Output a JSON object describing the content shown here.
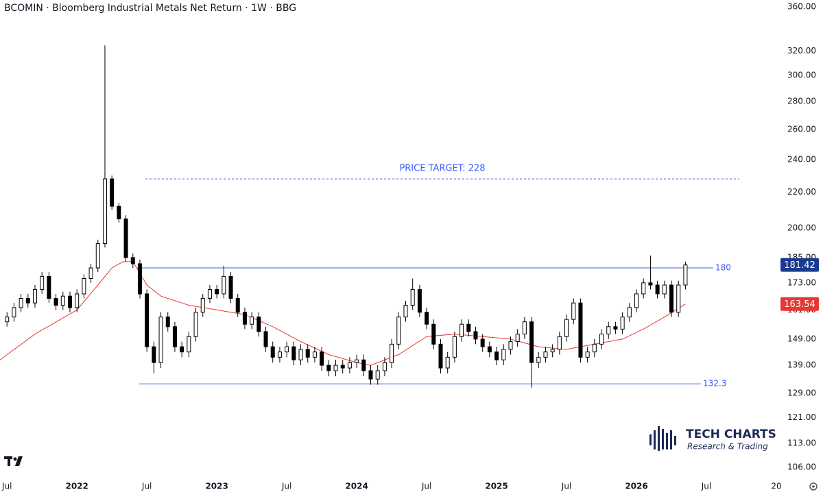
{
  "chart_data": {
    "type": "candlestick",
    "title": "BCOMIN · Bloomberg Industrial Metals Net Return · 1W · BBG",
    "x": [
      2021.5,
      2021.55,
      2021.6,
      2021.65,
      2021.7,
      2021.75,
      2021.8,
      2021.85,
      2021.9,
      2021.95,
      2022.0,
      2022.05,
      2022.1,
      2022.15,
      2022.2,
      2022.25,
      2022.3,
      2022.35,
      2022.4,
      2022.45,
      2022.5,
      2022.55,
      2022.6,
      2022.65,
      2022.7,
      2022.75,
      2022.8,
      2022.85,
      2022.9,
      2022.95,
      2023.0,
      2023.05,
      2023.1,
      2023.15,
      2023.2,
      2023.25,
      2023.3,
      2023.35,
      2023.4,
      2023.45,
      2023.5,
      2023.55,
      2023.6,
      2023.65,
      2023.7,
      2023.75,
      2023.8,
      2023.85,
      2023.9,
      2023.95,
      2024.0,
      2024.05,
      2024.1,
      2024.15,
      2024.2,
      2024.25,
      2024.3,
      2024.35,
      2024.4,
      2024.45,
      2024.5,
      2024.55,
      2024.6,
      2024.65,
      2024.7,
      2024.75,
      2024.8,
      2024.85,
      2024.9,
      2024.95,
      2025.0,
      2025.05,
      2025.1,
      2025.15,
      2025.2,
      2025.25,
      2025.3,
      2025.35,
      2025.4,
      2025.45,
      2025.5,
      2025.55,
      2025.6,
      2025.65,
      2025.7,
      2025.75,
      2025.8,
      2025.85,
      2025.9,
      2025.95,
      2026.0,
      2026.05,
      2026.1,
      2026.15,
      2026.2,
      2026.25,
      2026.3,
      2026.35
    ],
    "open": [
      156,
      158,
      162,
      166,
      164,
      170,
      176,
      166,
      163,
      167,
      162,
      168,
      175,
      180,
      192,
      228,
      212,
      205,
      185,
      182,
      168,
      146,
      140,
      158,
      154,
      146,
      144,
      150,
      160,
      166,
      170,
      168,
      176,
      166,
      160,
      155,
      158,
      152,
      146,
      142,
      144,
      146,
      141,
      145,
      142,
      144,
      139,
      137,
      139,
      138,
      140,
      141,
      137,
      134,
      137,
      140,
      147,
      158,
      163,
      170,
      160,
      155,
      147,
      138,
      142,
      150,
      155,
      152,
      149,
      146,
      144,
      141,
      145,
      148,
      151,
      156,
      140,
      142,
      144,
      145,
      150,
      157,
      164,
      142,
      144,
      147,
      151,
      154,
      153,
      158,
      162,
      168,
      173,
      172,
      168,
      172,
      160,
      172
    ],
    "high": [
      160,
      164,
      168,
      168,
      172,
      178,
      178,
      168,
      169,
      169,
      170,
      177,
      182,
      194,
      325,
      230,
      214,
      207,
      187,
      184,
      170,
      148,
      160,
      160,
      156,
      148,
      152,
      162,
      168,
      172,
      172,
      181,
      178,
      168,
      162,
      160,
      160,
      154,
      148,
      146,
      148,
      148,
      147,
      147,
      146,
      146,
      141,
      141,
      141,
      142,
      143,
      143,
      139,
      139,
      142,
      149,
      160,
      165,
      175,
      172,
      162,
      157,
      149,
      144,
      152,
      157,
      157,
      154,
      151,
      148,
      146,
      147,
      150,
      153,
      158,
      158,
      144,
      146,
      147,
      152,
      159,
      166,
      166,
      146,
      149,
      153,
      156,
      156,
      160,
      164,
      170,
      175,
      186,
      174,
      174,
      174,
      174,
      183
    ],
    "low": [
      154,
      156,
      160,
      162,
      162,
      168,
      164,
      161,
      161,
      160,
      160,
      166,
      173,
      178,
      190,
      210,
      203,
      183,
      180,
      166,
      144,
      136,
      138,
      152,
      144,
      142,
      142,
      148,
      158,
      164,
      166,
      166,
      164,
      158,
      153,
      153,
      150,
      144,
      140,
      140,
      142,
      139,
      139,
      140,
      140,
      137,
      135,
      135,
      136,
      136,
      138,
      135,
      132,
      132,
      135,
      138,
      145,
      156,
      161,
      158,
      153,
      145,
      136,
      136,
      140,
      148,
      150,
      147,
      144,
      142,
      139,
      139,
      143,
      146,
      149,
      131,
      138,
      140,
      142,
      143,
      148,
      155,
      140,
      140,
      142,
      145,
      149,
      151,
      151,
      156,
      160,
      166,
      170,
      166,
      166,
      158,
      158,
      170
    ],
    "close": [
      158,
      162,
      166,
      164,
      170,
      176,
      166,
      163,
      167,
      162,
      168,
      175,
      180,
      192,
      228,
      212,
      205,
      185,
      182,
      168,
      146,
      140,
      158,
      154,
      146,
      144,
      150,
      160,
      166,
      170,
      168,
      176,
      166,
      160,
      155,
      158,
      152,
      146,
      142,
      144,
      146,
      141,
      145,
      142,
      144,
      139,
      137,
      139,
      138,
      140,
      141,
      137,
      134,
      137,
      140,
      147,
      158,
      163,
      170,
      160,
      155,
      147,
      138,
      142,
      150,
      155,
      152,
      149,
      146,
      144,
      141,
      145,
      148,
      151,
      156,
      140,
      142,
      144,
      145,
      150,
      157,
      164,
      142,
      144,
      147,
      151,
      154,
      153,
      158,
      162,
      168,
      173,
      172,
      168,
      172,
      160,
      172,
      181.42
    ],
    "color_up": "#ffffff",
    "color_down": "#000000",
    "ma": {
      "color": "#e53935",
      "x": [
        2021.45,
        2021.7,
        2022.0,
        2022.15,
        2022.25,
        2022.33,
        2022.4,
        2022.5,
        2022.6,
        2022.8,
        2023.0,
        2023.2,
        2023.4,
        2023.6,
        2023.8,
        2024.0,
        2024.1,
        2024.3,
        2024.5,
        2024.7,
        2024.9,
        2025.1,
        2025.3,
        2025.5,
        2025.7,
        2025.9,
        2026.05,
        2026.2,
        2026.35
      ],
      "values": [
        141,
        151,
        161,
        172,
        180,
        183,
        183,
        172,
        167,
        163,
        161,
        159,
        154,
        148,
        143,
        140,
        139,
        143,
        150,
        151,
        150,
        149,
        146,
        145,
        147,
        149,
        153,
        158,
        163.54
      ]
    },
    "levels": [
      {
        "label": "PRICE TARGET: 228",
        "value": 228,
        "color": "#3d5afe",
        "style": "dashed"
      },
      {
        "value": 180,
        "color": "#3d5afe",
        "style": "solid"
      },
      {
        "value": 132.3,
        "color": "#3d5afe",
        "style": "solid"
      }
    ],
    "log_scale": true,
    "ylim": [
      102.6,
      366.6
    ],
    "yticks": [
      {
        "value": 360,
        "label": "360.00"
      },
      {
        "value": 320,
        "label": "320.00"
      },
      {
        "value": 300,
        "label": "300.00"
      },
      {
        "value": 280,
        "label": "280.00"
      },
      {
        "value": 260,
        "label": "260.00"
      },
      {
        "value": 240,
        "label": "240.00"
      },
      {
        "value": 220,
        "label": "220.00"
      },
      {
        "value": 200,
        "label": "200.00"
      },
      {
        "value": 185,
        "label": "185.00"
      },
      {
        "value": 173,
        "label": "173.00"
      },
      {
        "value": 161,
        "label": "161.00"
      },
      {
        "value": 149,
        "label": "149.00"
      },
      {
        "value": 139,
        "label": "139.00"
      },
      {
        "value": 129,
        "label": "129.00"
      },
      {
        "value": 121,
        "label": "121.00"
      },
      {
        "value": 113,
        "label": "113.00"
      },
      {
        "value": 106,
        "label": "106.00"
      }
    ],
    "xlim": [
      2021.45,
      2027.0
    ],
    "xticks": [
      {
        "value": 2021.5,
        "label": "Jul"
      },
      2022,
      {
        "value": 2022.5,
        "label": "Jul"
      },
      2023,
      {
        "value": 2023.5,
        "label": "Jul"
      },
      2024,
      {
        "value": 2024.5,
        "label": "Jul"
      },
      2025,
      {
        "value": 2025.5,
        "label": "Jul"
      },
      2026,
      {
        "value": 2026.5,
        "label": "Jul"
      },
      {
        "value": 2027,
        "label": "20"
      }
    ],
    "logo": {
      "title": "TECH CHARTS",
      "subtitle": "Research & Trading"
    }
  }
}
